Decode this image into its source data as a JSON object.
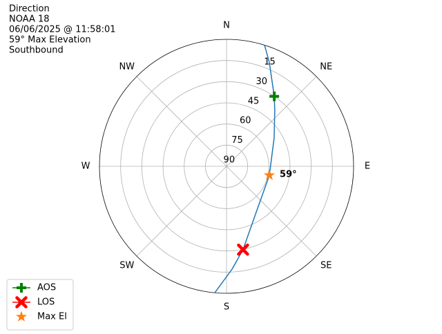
{
  "chart_data": {
    "type": "polar",
    "title_lines": [
      "Direction",
      "NOAA 18",
      "06/06/2025 @ 11:58:01",
      "59° Max Elevation",
      "Southbound"
    ],
    "rlim": [
      90,
      0
    ],
    "rticks": [
      15,
      30,
      45,
      60,
      75,
      90
    ],
    "thetaticks": [
      {
        "value": 0,
        "label": "N"
      },
      {
        "value": 45,
        "label": "NE"
      },
      {
        "value": 90,
        "label": "E"
      },
      {
        "value": 135,
        "label": "SE"
      },
      {
        "value": 180,
        "label": "S"
      },
      {
        "value": 225,
        "label": "SW"
      },
      {
        "value": 270,
        "label": "W"
      },
      {
        "value": 315,
        "label": "NW"
      }
    ],
    "grid": true,
    "track": {
      "color": "#1f77b4",
      "az": [
        17.4,
        22.3,
        34.3,
        40.8,
        59.3,
        101.8,
        148.7,
        168.8,
        176.9,
        185.3
      ],
      "el": [
        0,
        10.2,
        30,
        37.7,
        50.8,
        59,
        50.4,
        29.8,
        17,
        0
      ]
    },
    "series": [
      {
        "name": "AOS",
        "color": "#008000",
        "marker": "plus",
        "az": [
          34.3
        ],
        "el": [
          30
        ]
      },
      {
        "name": "LOS",
        "color": "#ff0000",
        "marker": "x",
        "az": [
          168.8
        ],
        "el": [
          29.8
        ]
      },
      {
        "name": "Max El",
        "color": "#ff7f0e",
        "marker": "star",
        "az": [
          101.8
        ],
        "el": [
          59
        ],
        "value_labels": [
          "59°"
        ]
      }
    ],
    "legend": "lower left"
  }
}
